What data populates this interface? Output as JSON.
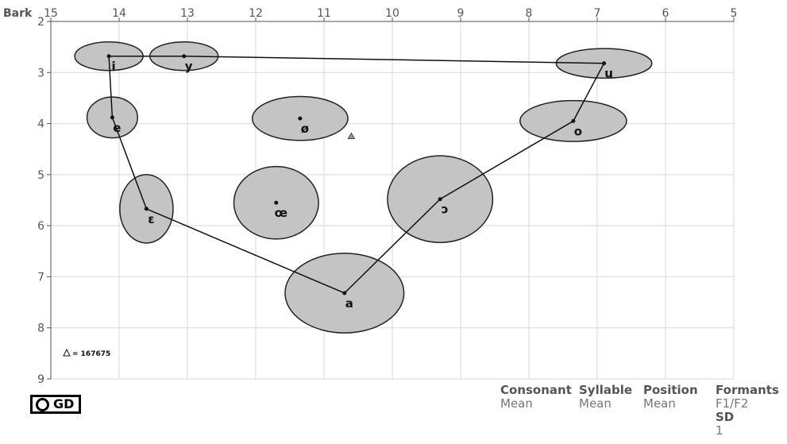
{
  "chart_data": {
    "type": "scatter",
    "title": "",
    "xlabel": "",
    "ylabel": "Bark",
    "xlim": [
      15,
      5
    ],
    "ylim": [
      2,
      9
    ],
    "x_ticks": [
      "15",
      "14",
      "13",
      "12",
      "11",
      "10",
      "9",
      "8",
      "7",
      "6",
      "5"
    ],
    "y_ticks": [
      "2",
      "3",
      "4",
      "5",
      "6",
      "7",
      "8",
      "9"
    ],
    "grid": true,
    "vowels": [
      {
        "label": "i",
        "x": 14.15,
        "y": 2.68,
        "sd_x": 0.5,
        "sd_y": 0.28
      },
      {
        "label": "y",
        "x": 13.05,
        "y": 2.68,
        "sd_x": 0.5,
        "sd_y": 0.28
      },
      {
        "label": "u",
        "x": 6.9,
        "y": 2.82,
        "sd_x": 0.7,
        "sd_y": 0.29
      },
      {
        "label": "e",
        "x": 14.1,
        "y": 3.88,
        "sd_x": 0.37,
        "sd_y": 0.4
      },
      {
        "label": "ø",
        "x": 11.35,
        "y": 3.9,
        "sd_x": 0.7,
        "sd_y": 0.43
      },
      {
        "label": "o",
        "x": 7.35,
        "y": 3.95,
        "sd_x": 0.78,
        "sd_y": 0.4
      },
      {
        "label": "ɛ",
        "x": 13.6,
        "y": 5.67,
        "sd_x": 0.39,
        "sd_y": 0.67
      },
      {
        "label": "œ",
        "x": 11.7,
        "y": 5.55,
        "sd_x": 0.62,
        "sd_y": 0.71
      },
      {
        "label": "ɔ",
        "x": 9.3,
        "y": 5.48,
        "sd_x": 0.77,
        "sd_y": 0.85
      },
      {
        "label": "a",
        "x": 10.7,
        "y": 7.32,
        "sd_x": 0.87,
        "sd_y": 0.78
      }
    ],
    "polygon_order": [
      "y",
      "i",
      "e",
      "ɛ",
      "a",
      "ɔ",
      "o",
      "u",
      "y"
    ],
    "extra_point": {
      "symbol": "△",
      "x": 10.6,
      "y": 4.25
    },
    "legend": {
      "symbol": "△",
      "text": "= 167675",
      "placement": "bottom-left"
    }
  },
  "logo": {
    "text": "GD"
  },
  "info": {
    "columns": [
      {
        "header": "Consonant",
        "value": "Mean"
      },
      {
        "header": "Syllable",
        "value": "Mean"
      },
      {
        "header": "Position",
        "value": "Mean"
      },
      {
        "header": "Formants",
        "value": "F1/F2",
        "header2": "SD",
        "value2": "1"
      }
    ]
  },
  "colors": {
    "ellipse_fill": "#c4c4c4",
    "ellipse_stroke": "#222222",
    "grid": "#d8d8d8",
    "text": "#555555"
  }
}
